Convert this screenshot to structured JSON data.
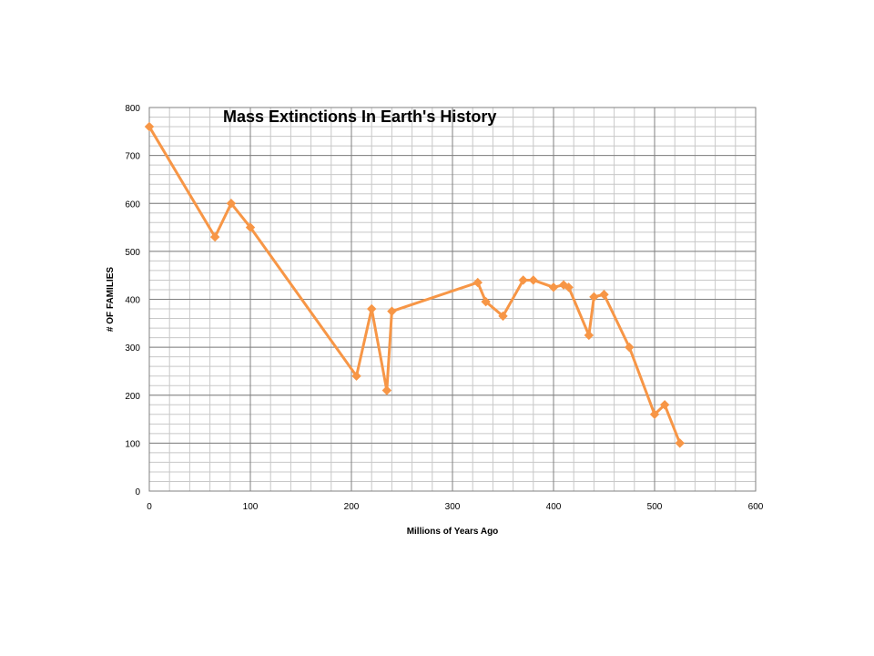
{
  "chart_data": {
    "type": "line",
    "title": "Mass Extinctions In Earth's History",
    "xlabel": "Millions of Years Ago",
    "ylabel": "# OF FAMILIES",
    "xlim": [
      0,
      600
    ],
    "ylim": [
      0,
      800
    ],
    "x_ticks": [
      0,
      100,
      200,
      300,
      400,
      500,
      600
    ],
    "y_ticks": [
      0,
      100,
      200,
      300,
      400,
      500,
      600,
      700,
      800
    ],
    "grid": true,
    "legend": "none",
    "line_color": "#F79646",
    "series": [
      {
        "x": [
          0,
          65,
          81,
          100,
          205,
          220,
          235,
          240,
          325,
          333,
          350,
          370,
          380,
          400,
          410,
          415,
          435,
          440,
          450,
          475,
          500,
          510,
          525
        ],
        "y": [
          760,
          530,
          600,
          550,
          240,
          380,
          210,
          375,
          435,
          395,
          365,
          440,
          440,
          425,
          430,
          425,
          325,
          405,
          410,
          300,
          160,
          180,
          100
        ]
      }
    ]
  }
}
